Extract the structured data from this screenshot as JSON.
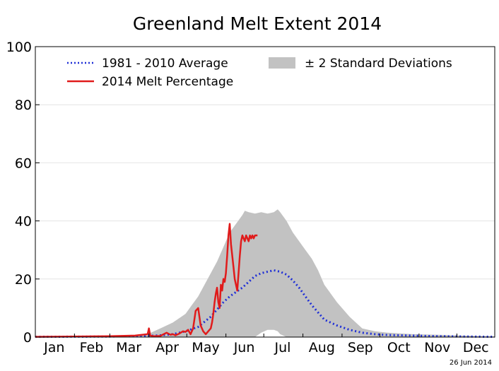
{
  "chart_data": {
    "type": "line",
    "title": "Greenland Melt Extent 2014",
    "xlabel": "",
    "ylabel": "",
    "ylim": [
      0,
      100
    ],
    "yticks": [
      "0",
      "20",
      "40",
      "60",
      "80",
      "100"
    ],
    "months": [
      "Jan",
      "Feb",
      "Mar",
      "Apr",
      "May",
      "Jun",
      "Jul",
      "Aug",
      "Sep",
      "Oct",
      "Nov",
      "Dec"
    ],
    "grid": true,
    "legend_position": "top",
    "series": [
      {
        "name": "1981 - 2010 Average",
        "color": "#1f2fd6",
        "style": "dotted",
        "x": [
          1,
          60,
          90,
          100,
          110,
          120,
          130,
          140,
          145,
          150,
          155,
          160,
          165,
          170,
          175,
          180,
          185,
          190,
          195,
          200,
          205,
          210,
          215,
          220,
          225,
          230,
          240,
          250,
          260,
          270,
          280,
          300,
          320,
          340,
          365
        ],
        "y": [
          0.1,
          0.2,
          0.4,
          0.6,
          1,
          2,
          3.5,
          7,
          9.5,
          12,
          14,
          15.5,
          17,
          19,
          21,
          22,
          22.5,
          23,
          22.5,
          21.5,
          19.5,
          17,
          14,
          11,
          8.5,
          6,
          4,
          2.5,
          1.5,
          1,
          0.7,
          0.5,
          0.3,
          0.2,
          0.1
        ]
      },
      {
        "name": "2014 Melt Percentage",
        "color": "#e01b1b",
        "style": "solid",
        "x": [
          1,
          30,
          60,
          80,
          90,
          91,
          92,
          95,
          100,
          105,
          108,
          110,
          112,
          115,
          118,
          120,
          122,
          124,
          126,
          128,
          130,
          132,
          134,
          136,
          138,
          140,
          141,
          142,
          143,
          144,
          145,
          146,
          147,
          148,
          149,
          150,
          151,
          152,
          153,
          154,
          155,
          156,
          157,
          158,
          159,
          160,
          161,
          162,
          163,
          164,
          165,
          166,
          167,
          168,
          169,
          170,
          171,
          172,
          173,
          174,
          175,
          176,
          177
        ],
        "y": [
          0.1,
          0.2,
          0.3,
          0.5,
          1,
          3,
          0.5,
          0.3,
          0.4,
          1.5,
          0.8,
          1,
          0.6,
          1.2,
          2,
          1.8,
          2.5,
          1,
          3,
          9,
          10,
          4,
          2,
          1,
          2,
          3,
          5,
          8,
          12,
          15,
          17,
          12,
          10,
          18,
          16,
          20,
          19,
          22,
          28,
          35,
          39,
          32,
          28,
          24,
          20,
          18,
          16,
          22,
          28,
          33,
          35,
          34,
          33,
          35,
          34,
          33,
          35,
          34,
          35,
          34,
          35,
          35,
          35
        ]
      }
    ],
    "band": {
      "name": "± 2 Standard Deviations",
      "color": "#c2c2c2",
      "x": [
        1,
        80,
        90,
        100,
        110,
        120,
        125,
        130,
        135,
        140,
        145,
        150,
        155,
        160,
        165,
        167,
        170,
        175,
        180,
        185,
        190,
        193,
        195,
        200,
        205,
        210,
        215,
        220,
        225,
        230,
        240,
        250,
        260,
        270,
        280,
        300,
        320,
        340,
        365
      ],
      "upper": [
        0.2,
        0.5,
        1,
        3,
        5,
        8,
        11,
        14,
        18,
        22,
        26,
        31,
        36,
        39,
        42,
        43.5,
        43,
        42.5,
        43,
        42.5,
        43,
        44,
        43,
        40,
        36,
        33,
        30,
        27,
        23,
        18,
        12,
        7,
        3,
        2,
        1.5,
        1,
        0.8,
        0.5,
        0.2
      ],
      "lower": [
        0,
        0,
        0,
        0,
        0,
        0,
        0,
        0,
        0,
        0,
        0,
        0,
        0,
        0,
        0,
        0,
        0,
        0,
        1.5,
        2.5,
        2.5,
        2,
        1,
        0,
        0,
        0,
        0,
        0,
        0,
        0,
        0,
        0,
        0,
        0,
        0,
        0,
        0,
        0,
        0
      ]
    },
    "footnote": "26 Jun 2014"
  }
}
